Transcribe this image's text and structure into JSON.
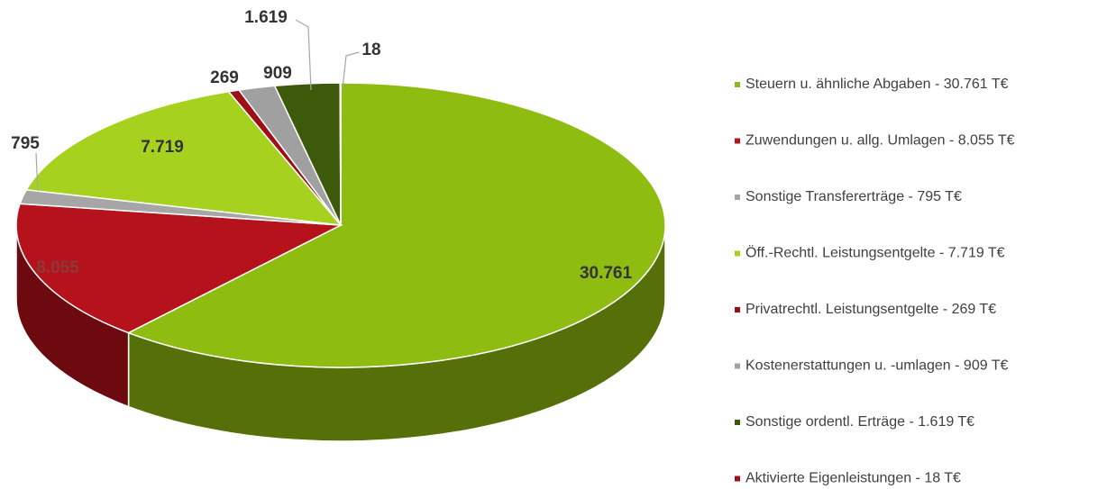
{
  "chart_data": {
    "type": "pie",
    "categories": [
      "Steuern u. ähnliche Abgaben - 30.761 T€",
      "Zuwendungen u. allg. Umlagen - 8.055 T€",
      "Sonstige Transfererträge - 795 T€",
      "Öff.-Rechtl. Leistungsentgelte - 7.719 T€",
      "Privatrechtl. Leistungsentgelte - 269 T€",
      "Kostenerstattungen u. -umlagen - 909 T€",
      "Sonstige ordentl. Erträge - 1.619 T€",
      "Aktivierte Eigenleistungen - 18 T€"
    ],
    "values": [
      30761,
      8055,
      795,
      7719,
      269,
      909,
      1619,
      18
    ],
    "value_labels": [
      "30.761",
      "8.055",
      "795",
      "7.719",
      "269",
      "909",
      "1.619",
      "18"
    ],
    "colors": [
      "#8fbc10",
      "#b5121b",
      "#a6a6a6",
      "#a6d11e",
      "#9e1016",
      "#a0a0a0",
      "#3d5a0a",
      "#a01018"
    ],
    "legend": "right"
  }
}
